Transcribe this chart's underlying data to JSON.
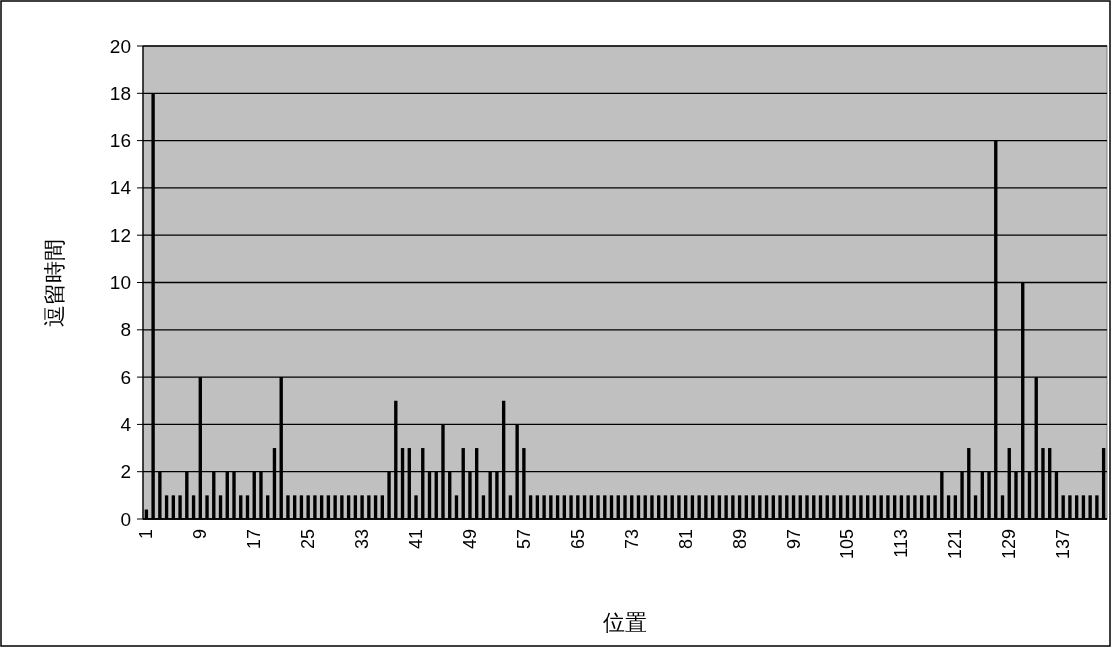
{
  "chart_data": {
    "type": "bar",
    "xlabel": "位置",
    "ylabel": "逗留時間",
    "categories": [
      "1",
      null,
      null,
      null,
      null,
      null,
      null,
      null,
      "9",
      null,
      null,
      null,
      null,
      null,
      null,
      null,
      "17",
      null,
      null,
      null,
      null,
      null,
      null,
      null,
      "25",
      null,
      null,
      null,
      null,
      null,
      null,
      null,
      "33",
      null,
      null,
      null,
      null,
      null,
      null,
      null,
      "41",
      null,
      null,
      null,
      null,
      null,
      null,
      null,
      "49",
      null,
      null,
      null,
      null,
      null,
      null,
      null,
      "57",
      null,
      null,
      null,
      null,
      null,
      null,
      null,
      "65",
      null,
      null,
      null,
      null,
      null,
      null,
      null,
      "73",
      null,
      null,
      null,
      null,
      null,
      null,
      null,
      "81",
      null,
      null,
      null,
      null,
      null,
      null,
      null,
      "89",
      null,
      null,
      null,
      null,
      null,
      null,
      null,
      "97",
      null,
      null,
      null,
      null,
      null,
      null,
      null,
      "105",
      null,
      null,
      null,
      null,
      null,
      null,
      null,
      "113",
      null,
      null,
      null,
      null,
      null,
      null,
      null,
      "121",
      null,
      null,
      null,
      null,
      null,
      null,
      null,
      "129",
      null,
      null,
      null,
      null,
      null,
      null,
      null,
      "137",
      null,
      null,
      null,
      null,
      null,
      null
    ],
    "values": [
      0.4,
      18,
      2,
      1,
      1,
      1,
      2,
      1,
      6,
      1,
      2,
      1,
      2,
      2,
      1,
      1,
      2,
      2,
      1,
      3,
      6,
      1,
      1,
      1,
      1,
      1,
      1,
      1,
      1,
      1,
      1,
      1,
      1,
      1,
      1,
      1,
      2,
      5,
      3,
      3,
      1,
      3,
      2,
      2,
      4,
      2,
      1,
      3,
      2,
      3,
      1,
      2,
      2,
      5,
      1,
      4,
      3,
      1,
      1,
      1,
      1,
      1,
      1,
      1,
      1,
      1,
      1,
      1,
      1,
      1,
      1,
      1,
      1,
      1,
      1,
      1,
      1,
      1,
      1,
      1,
      1,
      1,
      1,
      1,
      1,
      1,
      1,
      1,
      1,
      1,
      1,
      1,
      1,
      1,
      1,
      1,
      1,
      1,
      1,
      1,
      1,
      1,
      1,
      1,
      1,
      1,
      1,
      1,
      1,
      1,
      1,
      1,
      1,
      1,
      1,
      1,
      1,
      1,
      2,
      1,
      1,
      2,
      3,
      1,
      2,
      2,
      16,
      1,
      3,
      2,
      10,
      2,
      6,
      3,
      3,
      2,
      1,
      1,
      1,
      1,
      1,
      1,
      3
    ],
    "color": "#000000",
    "ylim": [
      0,
      20
    ],
    "yticks": [
      0,
      2,
      4,
      6,
      8,
      10,
      12,
      14,
      16,
      18,
      20
    ],
    "grid": "y"
  }
}
